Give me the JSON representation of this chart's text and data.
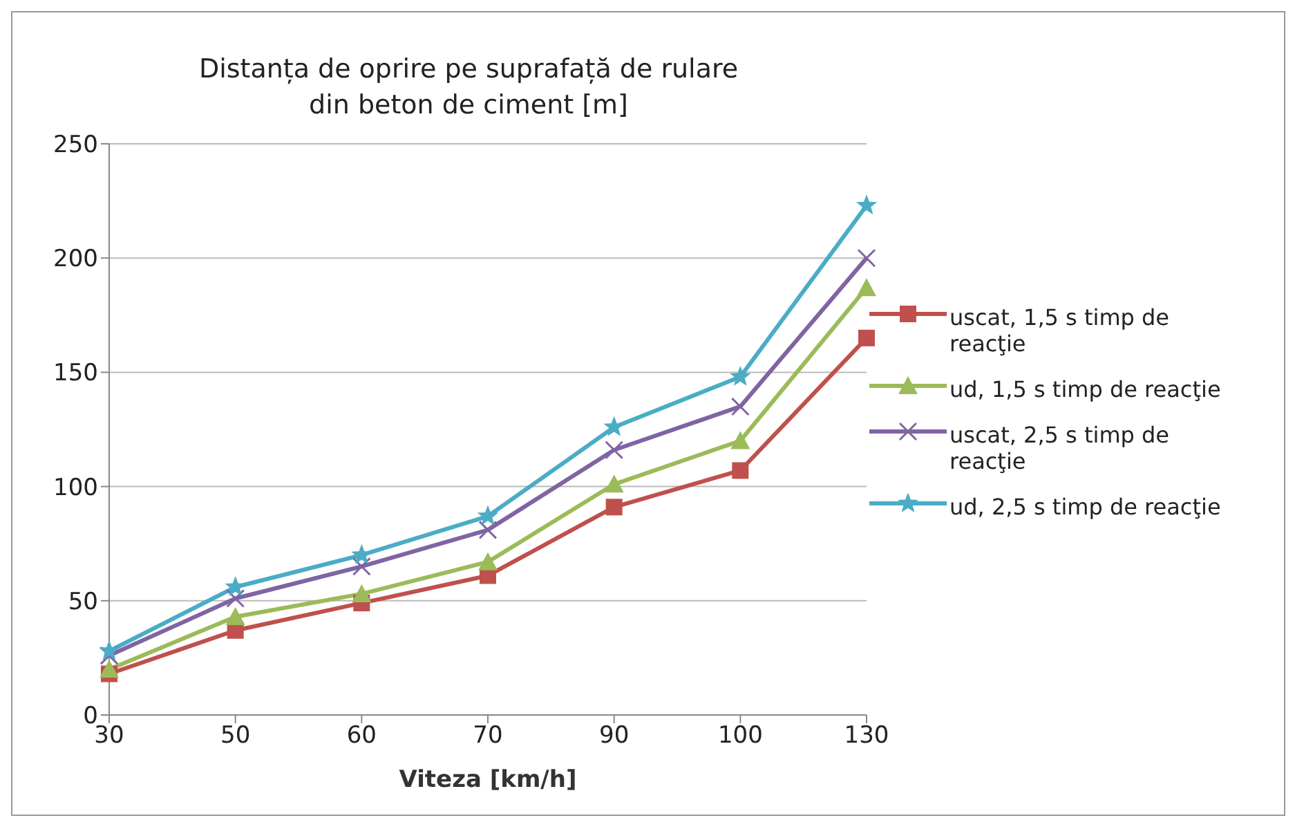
{
  "chart_data": {
    "type": "line",
    "title": "Distanța de oprire pe suprafață de rulare\ndin beton de ciment [m]",
    "xlabel": "Viteza [km/h]",
    "categories": [
      "30",
      "50",
      "60",
      "70",
      "90",
      "100",
      "130"
    ],
    "series": [
      {
        "name": "uscat, 1,5 s timp de reacţie",
        "color": "#c0504d",
        "marker": "square",
        "values": [
          18,
          37,
          49,
          61,
          91,
          107,
          165
        ]
      },
      {
        "name": "ud, 1,5 s timp de reacţie",
        "color": "#9bbb59",
        "marker": "triangle",
        "values": [
          20,
          43,
          53,
          67,
          101,
          120,
          187
        ]
      },
      {
        "name": "uscat, 2,5 s timp de reacţie",
        "color": "#8064a2",
        "marker": "cross",
        "values": [
          26,
          51,
          65,
          81,
          116,
          135,
          200
        ]
      },
      {
        "name": "ud, 2,5 s timp de reacţie",
        "color": "#4bacc6",
        "marker": "star",
        "values": [
          28,
          56,
          70,
          87,
          126,
          148,
          223
        ]
      }
    ],
    "ylim": [
      0,
      250
    ],
    "yticks": [
      0,
      50,
      100,
      150,
      200,
      250
    ],
    "grid": "y",
    "legend": "right"
  }
}
